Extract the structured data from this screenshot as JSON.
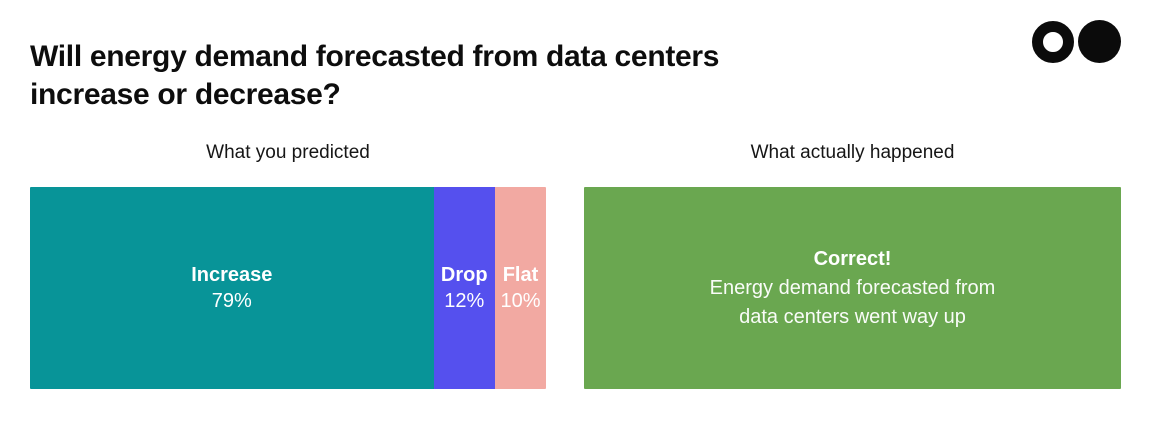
{
  "page": {
    "background": "#ffffff"
  },
  "header": {
    "title": "Will energy demand forecasted from data centers\nincrease or decrease?",
    "pagination_dots": [
      {
        "name": "question-1",
        "state": "hollow"
      },
      {
        "name": "question-2",
        "state": "filled"
      }
    ],
    "dot_color": "#0b0b0b"
  },
  "sections": {
    "predicted_label": "What you predicted",
    "actual_label": "What actually happened"
  },
  "result": {
    "heading": "Correct!",
    "message": "Energy demand forecasted from\ndata centers went way up",
    "background": "#6AA750",
    "text_color": "#ffffff"
  },
  "chart_data": {
    "type": "bar",
    "variant": "horizontal-stacked-100pct",
    "title": "What you predicted",
    "categories": [
      "Increase",
      "Drop",
      "Flat"
    ],
    "values": [
      79,
      12,
      10
    ],
    "unit": "%",
    "colors": [
      "#089498",
      "#5550EE",
      "#F2A9A2"
    ],
    "label_position": "inside-center",
    "label_color": "#ffffff",
    "axes": "none",
    "legend": "none"
  }
}
